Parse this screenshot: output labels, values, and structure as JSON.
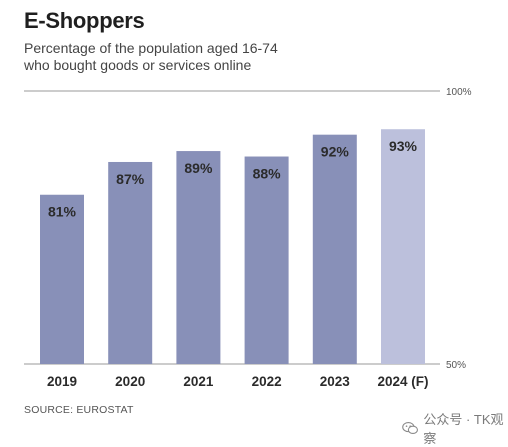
{
  "chart_data": {
    "type": "bar",
    "title": "E-Shoppers",
    "subtitle_line1": "Percentage of the population aged 16-74",
    "subtitle_line2": "who bought goods or services online",
    "categories": [
      "2019",
      "2020",
      "2021",
      "2022",
      "2023",
      "2024 (F)"
    ],
    "values": [
      81,
      87,
      89,
      88,
      92,
      93
    ],
    "data_labels": [
      "81%",
      "87%",
      "89%",
      "88%",
      "92%",
      "93%"
    ],
    "forecast_index": 5,
    "ylim": [
      50,
      100
    ],
    "yticks": [
      "100%",
      "50%"
    ],
    "colors": {
      "actual": "#8890b8",
      "forecast": "#bcc0dc",
      "axis": "#9a9a9a",
      "text": "#2b2b2b"
    },
    "source": "SOURCE: EUROSTAT"
  },
  "watermark": {
    "icon": "wechat-icon",
    "text": "公众号 · TK观察"
  }
}
